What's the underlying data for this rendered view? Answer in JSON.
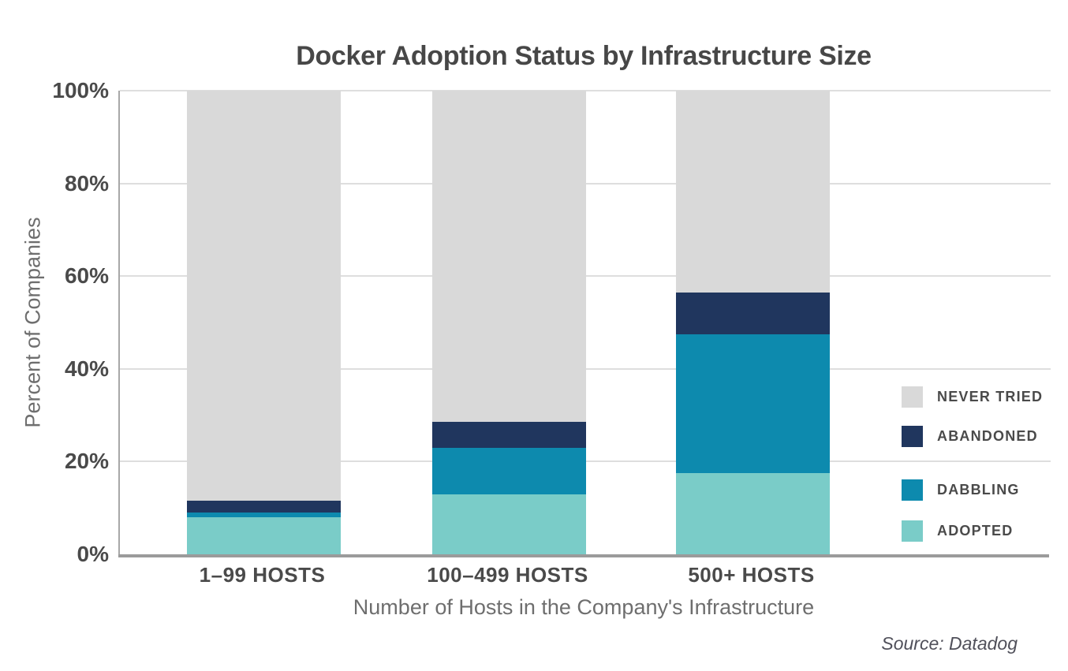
{
  "chart_data": {
    "type": "bar",
    "stacked": true,
    "title": "Docker Adoption Status by Infrastructure Size",
    "xlabel": "Number of Hosts in the Company's Infrastructure",
    "ylabel": "Percent of Companies",
    "categories": [
      "1–99 HOSTS",
      "100–499 HOSTS",
      "500+ HOSTS"
    ],
    "series": [
      {
        "name": "ADOPTED",
        "color": "#7accc8",
        "values": [
          8,
          13,
          17.5
        ]
      },
      {
        "name": "DABBLING",
        "color": "#0d8aae",
        "values": [
          1,
          10,
          30
        ]
      },
      {
        "name": "ABANDONED",
        "color": "#20365e",
        "values": [
          2.5,
          5.5,
          9
        ]
      },
      {
        "name": "NEVER TRIED",
        "color": "#d9d9d9",
        "values": [
          88.5,
          71.5,
          43.5
        ]
      }
    ],
    "legend_order": [
      "NEVER TRIED",
      "ABANDONED",
      "DABBLING",
      "ADOPTED"
    ],
    "legend_position": "right",
    "yticks": [
      "0%",
      "20%",
      "40%",
      "60%",
      "80%",
      "100%"
    ],
    "ytick_values": [
      0,
      20,
      40,
      60,
      80,
      100
    ],
    "ylim": [
      0,
      100
    ],
    "grid": true,
    "colors": {
      "grid_line": "#dedede",
      "axis_line": "#9b9b9b",
      "y_axis_line": "#a8a8a8",
      "dark_text": "#4a4a4a",
      "light_text": "#6e6e6e"
    }
  },
  "source_note": "Source: Datadog"
}
